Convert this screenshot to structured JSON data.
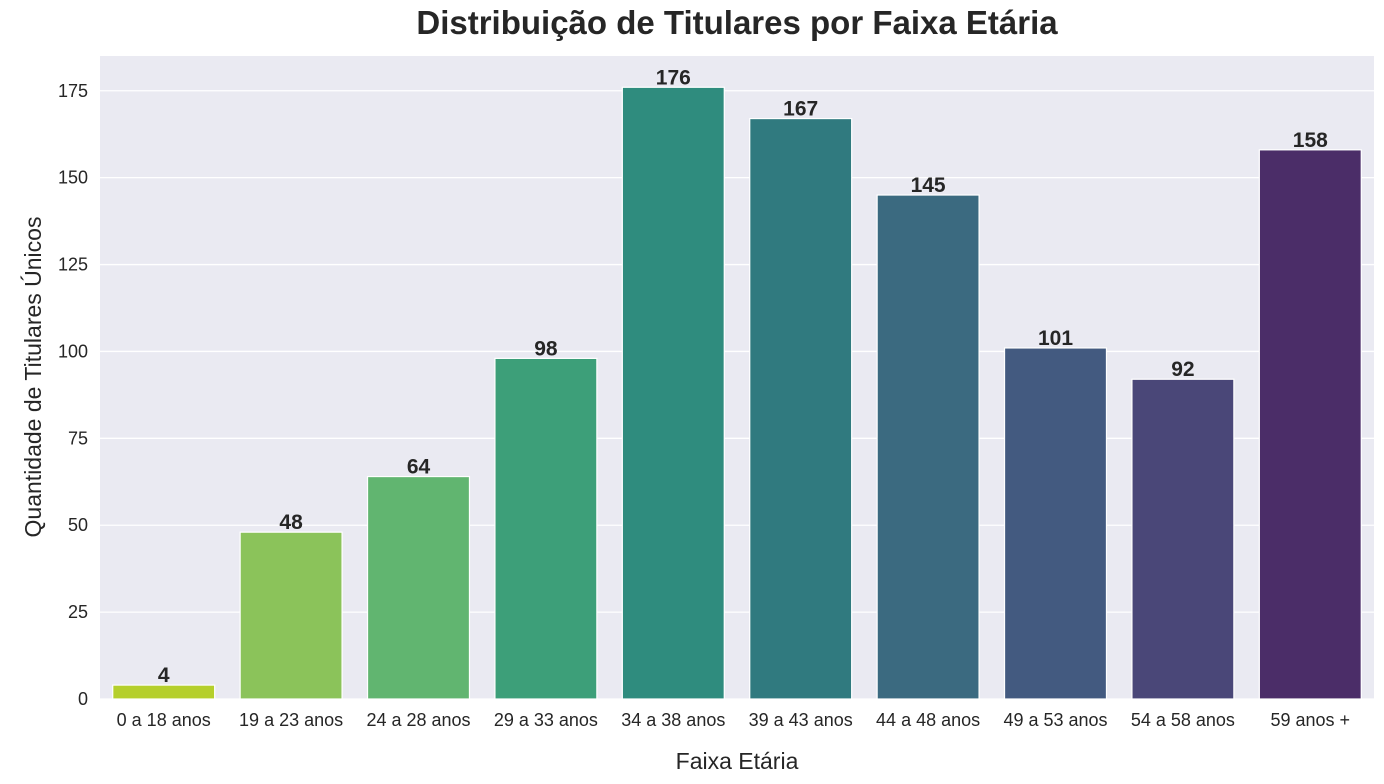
{
  "chart_data": {
    "type": "bar",
    "title": "Distribuição de Titulares por Faixa Etária",
    "xlabel": "Faixa Etária",
    "ylabel": "Quantidade de Titulares Únicos",
    "categories": [
      "0 a 18 anos",
      "19 a 23 anos",
      "24 a 28 anos",
      "29 a 33 anos",
      "34 a 38 anos",
      "39 a 43 anos",
      "44 a 48 anos",
      "49 a 53 anos",
      "54 a 58 anos",
      "59 anos +"
    ],
    "values": [
      4,
      48,
      64,
      98,
      176,
      167,
      145,
      101,
      92,
      158
    ],
    "data_labels": [
      "4",
      "48",
      "64",
      "98",
      "176",
      "167",
      "145",
      "101",
      "92",
      "158"
    ],
    "ylim": [
      0,
      185
    ],
    "yticks": [
      0,
      25,
      50,
      75,
      100,
      125,
      150,
      175
    ],
    "ytick_labels": [
      "0",
      "25",
      "50",
      "75",
      "100",
      "125",
      "150",
      "175"
    ],
    "grid": true,
    "legend": "none",
    "background_color": "#eaeaf2",
    "colors": [
      "#b5cf2c",
      "#8bc35a",
      "#61b570",
      "#3d9f79",
      "#2f8c7e",
      "#307a7f",
      "#3b6a80",
      "#435a80",
      "#4a4778",
      "#4b2d68"
    ]
  }
}
